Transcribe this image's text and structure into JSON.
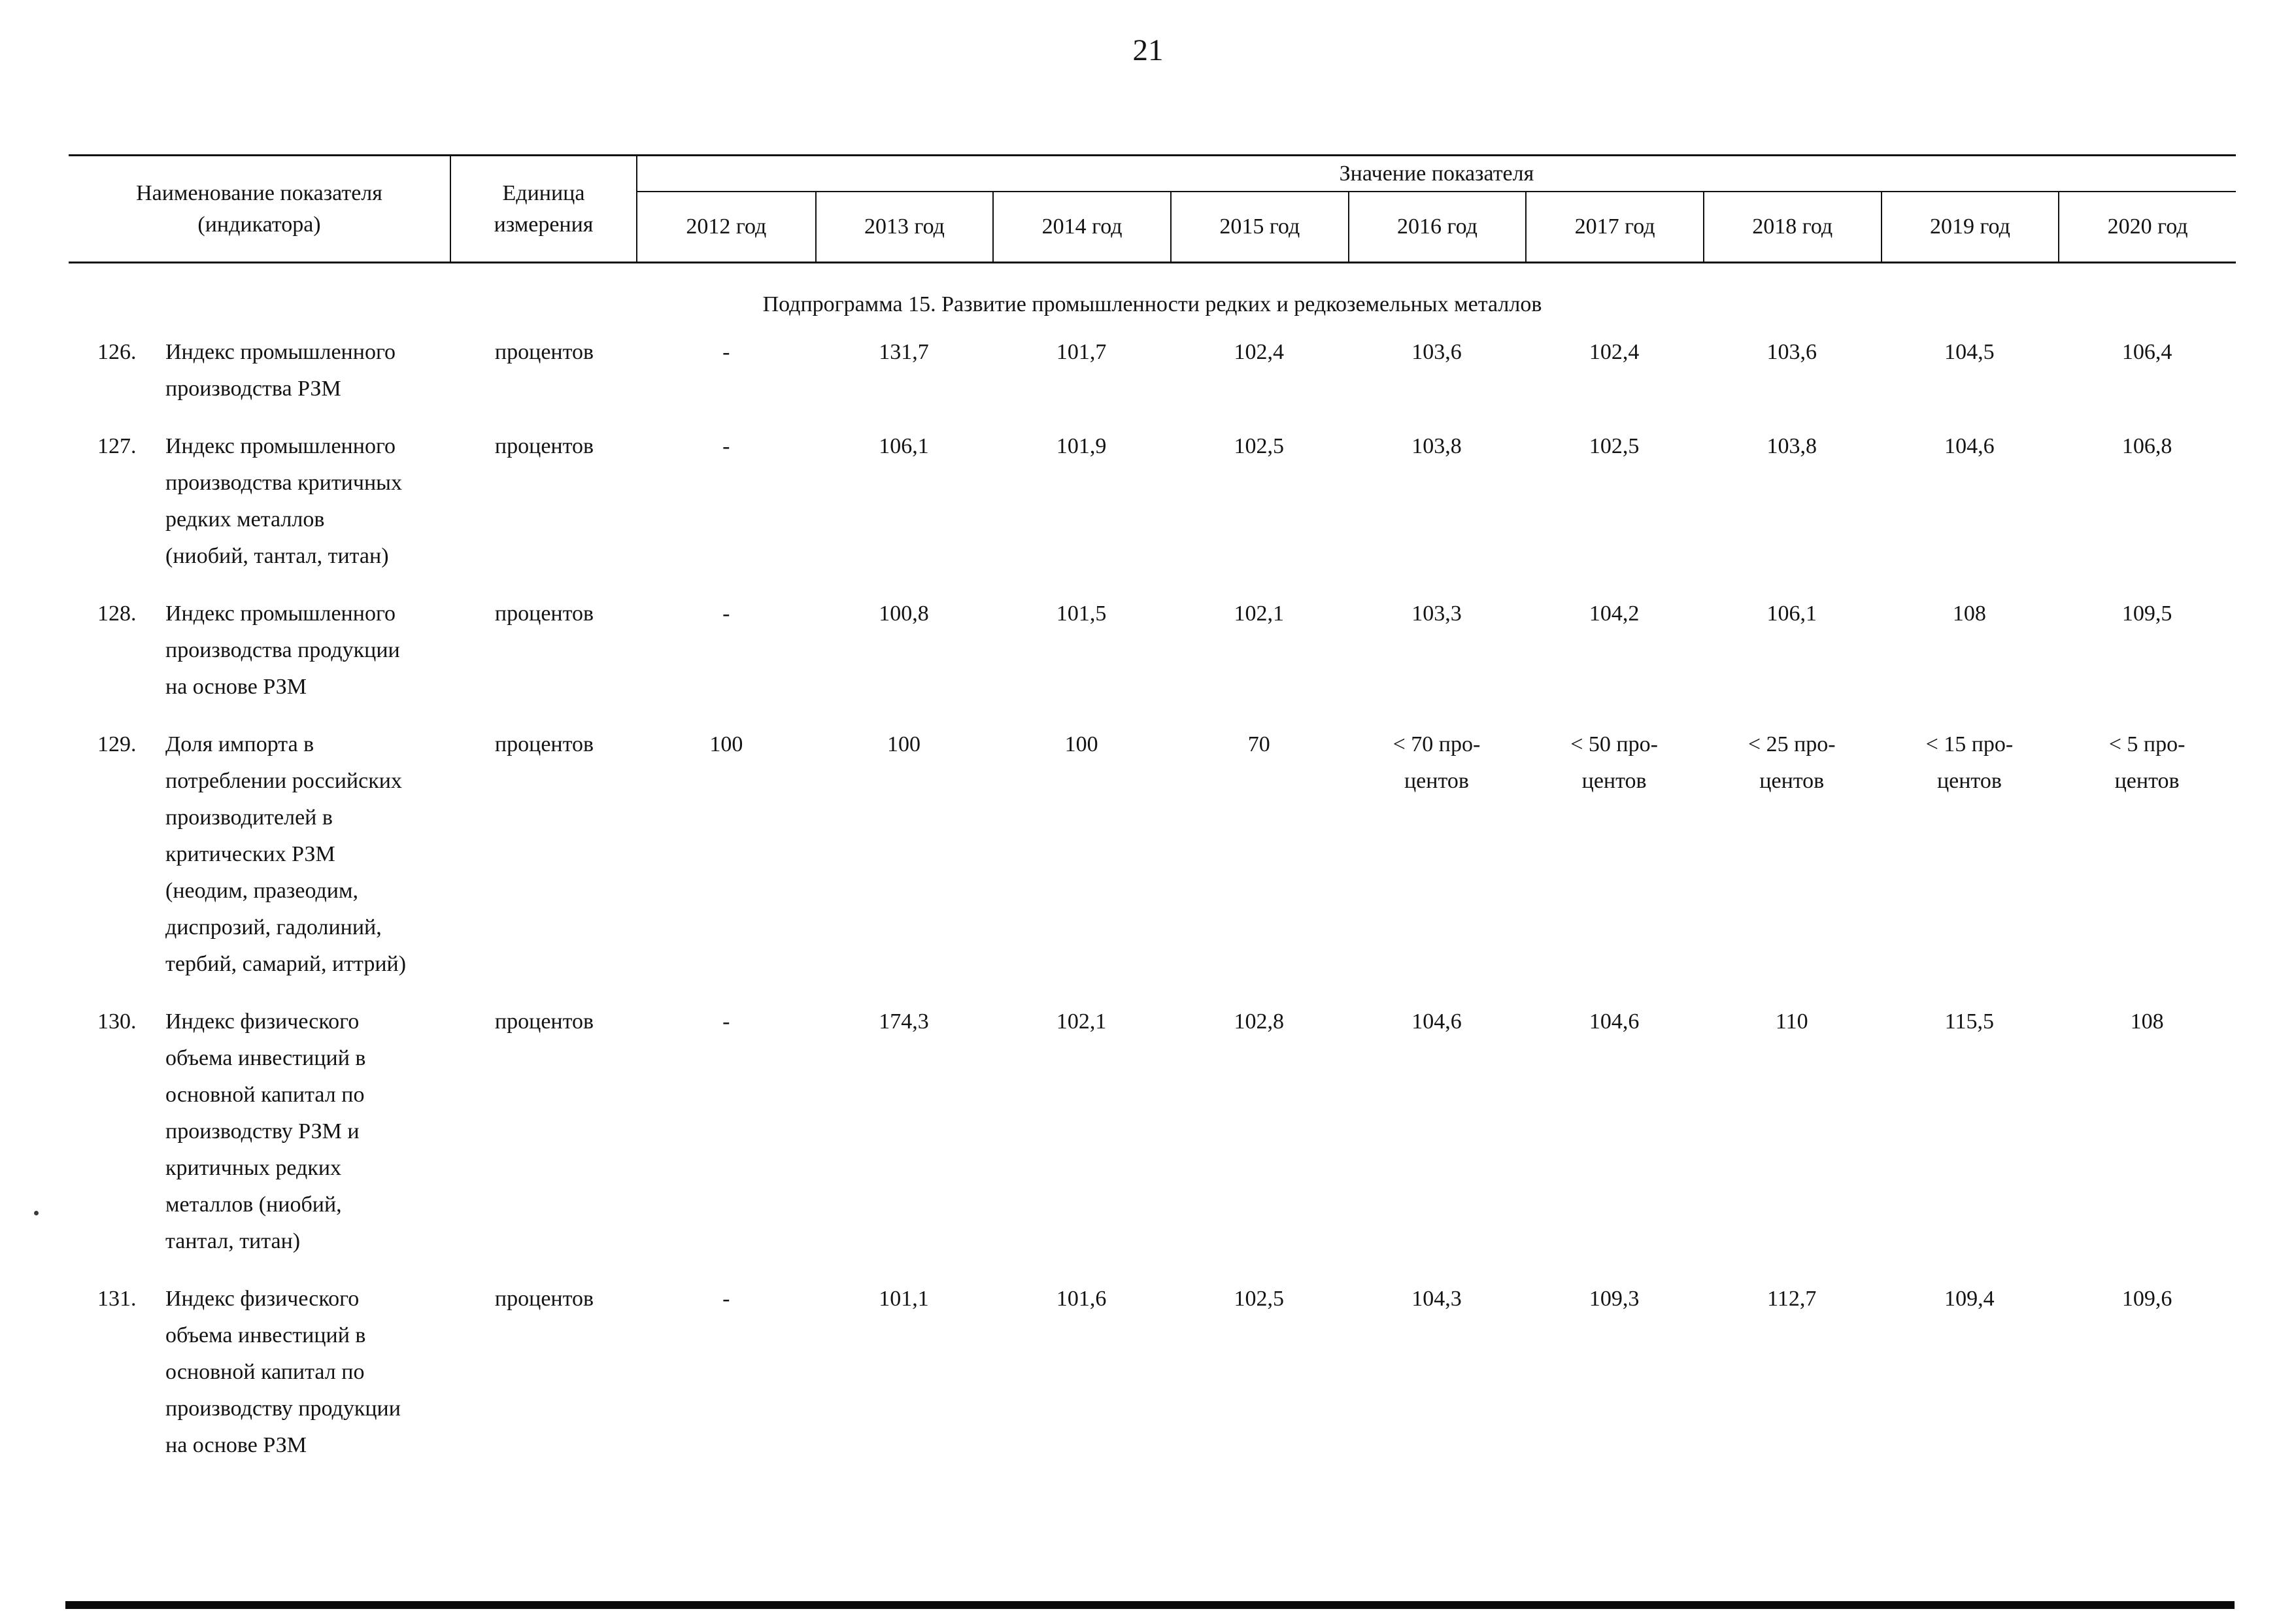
{
  "page": {
    "number": "21"
  },
  "table": {
    "header": {
      "name_col": "Наименование показателя\n(индикатора)",
      "unit_col": "Единица\nизмерения",
      "values_group": "Значение показателя",
      "years": [
        "2012 год",
        "2013 год",
        "2014 год",
        "2015 год",
        "2016 год",
        "2017 год",
        "2018 год",
        "2019 год",
        "2020 год"
      ]
    },
    "section_title": "Подпрограмма 15. Развитие промышленности редких и редкоземельных металлов",
    "rows": [
      {
        "num": "126.",
        "name": "Индекс промышленного\nпроизводства РЗМ",
        "unit": "процентов",
        "values": [
          "-",
          "131,7",
          "101,7",
          "102,4",
          "103,6",
          "102,4",
          "103,6",
          "104,5",
          "106,4"
        ]
      },
      {
        "num": "127.",
        "name": "Индекс промышленного\nпроизводства критичных\nредких металлов\n(ниобий, тантал, титан)",
        "unit": "процентов",
        "values": [
          "-",
          "106,1",
          "101,9",
          "102,5",
          "103,8",
          "102,5",
          "103,8",
          "104,6",
          "106,8"
        ]
      },
      {
        "num": "128.",
        "name": "Индекс промышленного\nпроизводства продукции\nна основе РЗМ",
        "unit": "процентов",
        "values": [
          "-",
          "100,8",
          "101,5",
          "102,1",
          "103,3",
          "104,2",
          "106,1",
          "108",
          "109,5"
        ]
      },
      {
        "num": "129.",
        "name": "Доля импорта в\nпотреблении российских\nпроизводителей в\nкритических РЗМ\n(неодим, празеодим,\nдиспрозий, гадолиний,\nтербий, самарий, иттрий)",
        "unit": "процентов",
        "values": [
          "100",
          "100",
          "100",
          "70",
          "< 70 про-\nцентов",
          "< 50 про-\nцентов",
          "< 25 про-\nцентов",
          "< 15 про-\nцентов",
          "< 5 про-\nцентов"
        ]
      },
      {
        "num": "130.",
        "name": "Индекс физического\nобъема инвестиций в\nосновной капитал по\nпроизводству РЗМ и\nкритичных редких\nметаллов (ниобий,\nтантал, титан)",
        "unit": "процентов",
        "values": [
          "-",
          "174,3",
          "102,1",
          "102,8",
          "104,6",
          "104,6",
          "110",
          "115,5",
          "108"
        ]
      },
      {
        "num": "131.",
        "name": "Индекс физического\nобъема инвестиций в\nосновной капитал по\nпроизводству продукции\nна основе РЗМ",
        "unit": "процентов",
        "values": [
          "-",
          "101,1",
          "101,6",
          "102,5",
          "104,3",
          "109,3",
          "112,7",
          "109,4",
          "109,6"
        ]
      }
    ]
  }
}
